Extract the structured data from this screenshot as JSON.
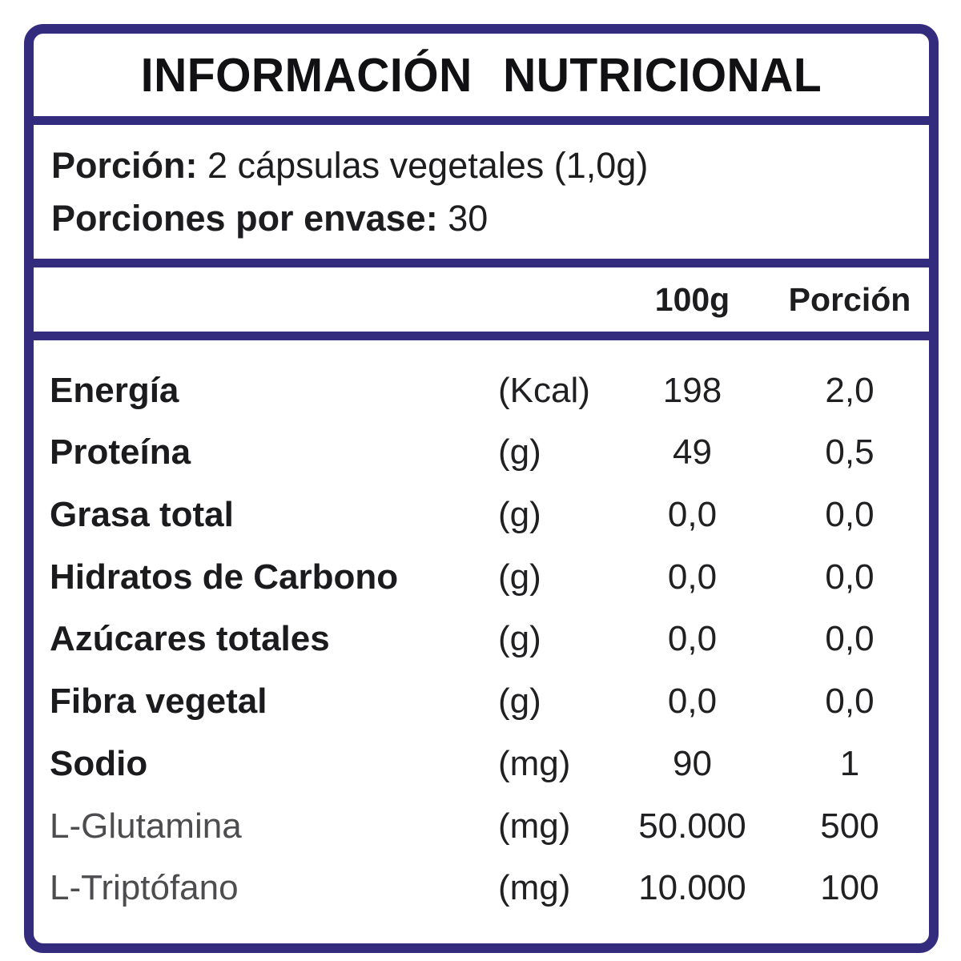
{
  "label": {
    "title": "INFORMACIÓN NUTRICIONAL",
    "serving": {
      "porcion_label": "Porción:",
      "porcion_value": " 2 cápsulas vegetales (1,0g)",
      "porciones_label": "Porciones por envase:",
      "porciones_value": " 30"
    },
    "columns": {
      "per_100g": "100g",
      "per_serving": "Porción"
    },
    "rows": [
      {
        "name": "Energía",
        "unit": "(Kcal)",
        "per100g": "198",
        "porcion": "2,0",
        "emphasis": "bold"
      },
      {
        "name": "Proteína",
        "unit": "(g)",
        "per100g": "49",
        "porcion": "0,5",
        "emphasis": "bold"
      },
      {
        "name": "Grasa total",
        "unit": "(g)",
        "per100g": "0,0",
        "porcion": "0,0",
        "emphasis": "bold"
      },
      {
        "name": "Hidratos de Carbono",
        "unit": "(g)",
        "per100g": "0,0",
        "porcion": "0,0",
        "emphasis": "bold"
      },
      {
        "name": "Azúcares totales",
        "unit": "(g)",
        "per100g": "0,0",
        "porcion": "0,0",
        "emphasis": "bold"
      },
      {
        "name": "Fibra vegetal",
        "unit": "(g)",
        "per100g": "0,0",
        "porcion": "0,0",
        "emphasis": "bold"
      },
      {
        "name": "Sodio",
        "unit": "(mg)",
        "per100g": "90",
        "porcion": "1",
        "emphasis": "bold"
      },
      {
        "name": "L-Glutamina",
        "unit": "(mg)",
        "per100g": "50.000",
        "porcion": "500",
        "emphasis": "light"
      },
      {
        "name": "L-Triptófano",
        "unit": "(mg)",
        "per100g": "10.000",
        "porcion": "100",
        "emphasis": "light"
      }
    ],
    "colors": {
      "border": "#332c7e",
      "text": "#1d1d1f",
      "muted_text": "#4d4d50",
      "background": "#ffffff"
    }
  }
}
